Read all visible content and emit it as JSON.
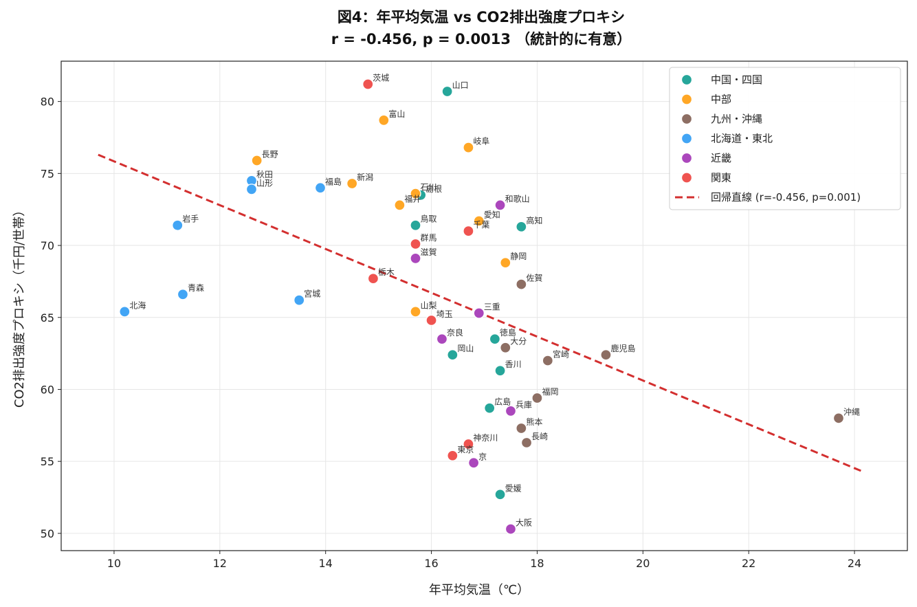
{
  "chart_data": {
    "type": "scatter",
    "title": "図4：年平均気温 vs CO2排出強度プロキシ",
    "subtitle": "r = -0.456, p = 0.0013 （統計的に有意）",
    "xlabel": "年平均気温（℃）",
    "ylabel": "CO2排出強度プロキシ（千円/世帯）",
    "xlim": [
      9,
      25
    ],
    "ylim": [
      48.8,
      82.8
    ],
    "xticks": [
      10,
      12,
      14,
      16,
      18,
      20,
      22,
      24
    ],
    "yticks": [
      50,
      55,
      60,
      65,
      70,
      75,
      80
    ],
    "grid": true,
    "legend_position": "top-right",
    "series": [
      {
        "name": "中国・四国",
        "color": "#26a69a",
        "points": [
          {
            "label": "山口",
            "x": 16.3,
            "y": 80.7
          },
          {
            "label": "島根",
            "x": 15.8,
            "y": 73.5
          },
          {
            "label": "鳥取",
            "x": 15.7,
            "y": 71.4
          },
          {
            "label": "高知",
            "x": 17.7,
            "y": 71.3
          },
          {
            "label": "徳島",
            "x": 17.2,
            "y": 63.5
          },
          {
            "label": "岡山",
            "x": 16.4,
            "y": 62.4
          },
          {
            "label": "香川",
            "x": 17.3,
            "y": 61.3
          },
          {
            "label": "広島",
            "x": 17.1,
            "y": 58.7
          },
          {
            "label": "愛媛",
            "x": 17.3,
            "y": 52.7
          }
        ]
      },
      {
        "name": "中部",
        "color": "#ffa726",
        "points": [
          {
            "label": "富山",
            "x": 15.1,
            "y": 78.7
          },
          {
            "label": "岐阜",
            "x": 16.7,
            "y": 76.8
          },
          {
            "label": "長野",
            "x": 12.7,
            "y": 75.9
          },
          {
            "label": "新潟",
            "x": 14.5,
            "y": 74.3
          },
          {
            "label": "石川",
            "x": 15.7,
            "y": 73.6
          },
          {
            "label": "福井",
            "x": 15.4,
            "y": 72.8
          },
          {
            "label": "愛知",
            "x": 16.9,
            "y": 71.7
          },
          {
            "label": "静岡",
            "x": 17.4,
            "y": 68.8
          },
          {
            "label": "山梨",
            "x": 15.7,
            "y": 65.4
          }
        ]
      },
      {
        "name": "九州・沖縄",
        "color": "#8d6e63",
        "points": [
          {
            "label": "佐賀",
            "x": 17.7,
            "y": 67.3
          },
          {
            "label": "大分",
            "x": 17.4,
            "y": 62.9
          },
          {
            "label": "宮崎",
            "x": 18.2,
            "y": 62.0
          },
          {
            "label": "鹿児島",
            "x": 19.3,
            "y": 62.4
          },
          {
            "label": "福岡",
            "x": 18.0,
            "y": 59.4
          },
          {
            "label": "熊本",
            "x": 17.7,
            "y": 57.3
          },
          {
            "label": "長崎",
            "x": 17.8,
            "y": 56.3
          },
          {
            "label": "沖縄",
            "x": 23.7,
            "y": 58.0
          }
        ]
      },
      {
        "name": "北海道・東北",
        "color": "#42a5f5",
        "points": [
          {
            "label": "秋田",
            "x": 12.6,
            "y": 74.5
          },
          {
            "label": "山形",
            "x": 12.6,
            "y": 73.9
          },
          {
            "label": "福島",
            "x": 13.9,
            "y": 74.0
          },
          {
            "label": "岩手",
            "x": 11.2,
            "y": 71.4
          },
          {
            "label": "青森",
            "x": 11.3,
            "y": 66.6
          },
          {
            "label": "宮城",
            "x": 13.5,
            "y": 66.2
          },
          {
            "label": "北海",
            "x": 10.2,
            "y": 65.4
          }
        ]
      },
      {
        "name": "近畿",
        "color": "#ab47bc",
        "points": [
          {
            "label": "和歌山",
            "x": 17.3,
            "y": 72.8
          },
          {
            "label": "滋賀",
            "x": 15.7,
            "y": 69.1
          },
          {
            "label": "三重",
            "x": 16.9,
            "y": 65.3
          },
          {
            "label": "奈良",
            "x": 16.2,
            "y": 63.5
          },
          {
            "label": "兵庫",
            "x": 17.5,
            "y": 58.5
          },
          {
            "label": "京",
            "x": 16.8,
            "y": 54.9
          },
          {
            "label": "大阪",
            "x": 17.5,
            "y": 50.3
          }
        ]
      },
      {
        "name": "関東",
        "color": "#ef5350",
        "points": [
          {
            "label": "茨城",
            "x": 14.8,
            "y": 81.2
          },
          {
            "label": "千葉",
            "x": 16.7,
            "y": 71.0
          },
          {
            "label": "群馬",
            "x": 15.7,
            "y": 70.1
          },
          {
            "label": "栃木",
            "x": 14.9,
            "y": 67.7
          },
          {
            "label": "埼玉",
            "x": 16.0,
            "y": 64.8
          },
          {
            "label": "神奈川",
            "x": 16.7,
            "y": 56.2
          },
          {
            "label": "東京",
            "x": 16.4,
            "y": 55.4
          }
        ]
      }
    ],
    "regression": {
      "name": "回帰直線 (r=-0.456, p=0.001)",
      "color": "#d32f2f",
      "x": [
        9.7,
        24.15
      ],
      "y": [
        76.3,
        54.3
      ]
    }
  }
}
